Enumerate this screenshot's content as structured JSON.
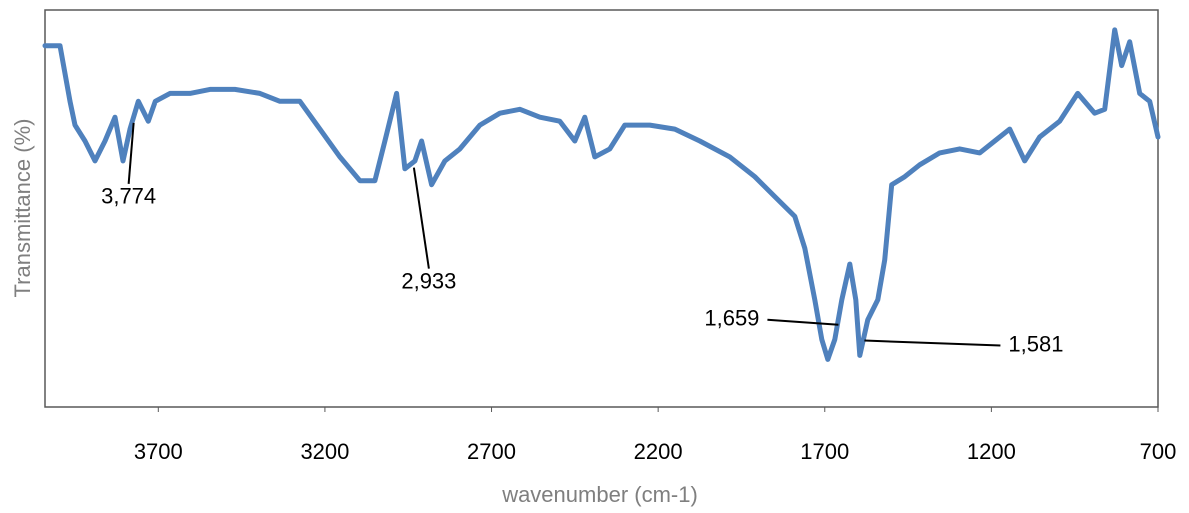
{
  "chart_data": {
    "type": "line",
    "x_label": "wavenumber (cm-1)",
    "y_label": "Transmittance (%)",
    "xlim": [
      4040,
      700
    ],
    "ylim": [
      0,
      100
    ],
    "xticks": [
      3700,
      3200,
      2700,
      2200,
      1700,
      1200,
      700
    ],
    "grid": false,
    "series": [
      {
        "color": "#4f81bd",
        "x": [
          4040,
          3995,
          3965,
          3950,
          3920,
          3890,
          3860,
          3830,
          3806,
          3785,
          3760,
          3730,
          3709,
          3665,
          3605,
          3545,
          3470,
          3395,
          3335,
          3275,
          3215,
          3155,
          3095,
          3050,
          3020,
          2985,
          2960,
          2930,
          2910,
          2880,
          2840,
          2795,
          2735,
          2675,
          2615,
          2555,
          2495,
          2450,
          2420,
          2390,
          2345,
          2300,
          2225,
          2150,
          2075,
          1985,
          1910,
          1850,
          1790,
          1760,
          1730,
          1709,
          1691,
          1670,
          1649,
          1625,
          1607,
          1595,
          1571,
          1541,
          1520,
          1499,
          1460,
          1415,
          1355,
          1295,
          1235,
          1190,
          1145,
          1100,
          1055,
          995,
          941,
          890,
          860,
          830,
          809,
          785,
          755,
          725,
          700
        ],
        "values": [
          91,
          91,
          77,
          71,
          67,
          62,
          67,
          73,
          62,
          70,
          77,
          72,
          77,
          79,
          79,
          80,
          80,
          79,
          77,
          77,
          70,
          63,
          57,
          57,
          67,
          79,
          60,
          62,
          67,
          56,
          62,
          65,
          71,
          74,
          75,
          73,
          72,
          67,
          73,
          63,
          65,
          71,
          71,
          70,
          67,
          63,
          58,
          53,
          48,
          40,
          27,
          17,
          12,
          17,
          27,
          36,
          27,
          13,
          22,
          27,
          37,
          56,
          58,
          61,
          64,
          65,
          64,
          67,
          70,
          62,
          68,
          72,
          79,
          74,
          75,
          95,
          86,
          92,
          79,
          77,
          68
        ]
      }
    ],
    "annotations": [
      {
        "value": 3774,
        "label": "3,774"
      },
      {
        "value": 2933,
        "label": "2,933"
      },
      {
        "value": 1659,
        "label": "1,659"
      },
      {
        "value": 1581,
        "label": "1,581"
      }
    ]
  }
}
